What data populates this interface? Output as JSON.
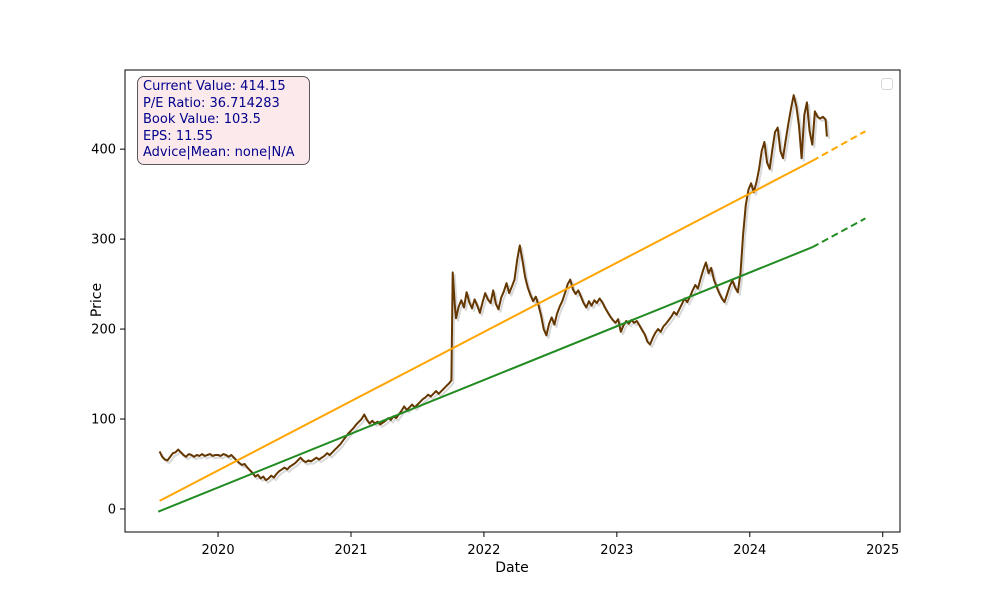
{
  "window": {
    "background": "#ffffff"
  },
  "annotation": {
    "lines": [
      "Current Value: 414.15",
      "P/E Ratio: 36.714283",
      "Book Value: 103.5",
      "EPS: 11.55",
      "Advice|Mean: none|N/A"
    ],
    "text_color": "#00008B",
    "background": "#fce9ec",
    "border_color": "#5a5a5a"
  },
  "legend": {
    "visible": true,
    "entries": []
  },
  "colors": {
    "price": "#653700",
    "price_shadow": "#cfcfcf",
    "trend_upper": "#FFA500",
    "trend_lower": "#228B22",
    "spine": "#000000"
  },
  "chart_data": {
    "type": "line",
    "title": "",
    "xlabel": "Date",
    "ylabel": "Price",
    "xlim": [
      2019.3,
      2025.13
    ],
    "ylim": [
      -25.6,
      488
    ],
    "x_ticks": [
      2020,
      2021,
      2022,
      2023,
      2024,
      2025
    ],
    "x_tick_labels": [
      "2020",
      "2021",
      "2022",
      "2023",
      "2024",
      "2025"
    ],
    "y_ticks": [
      0,
      100,
      200,
      300,
      400
    ],
    "y_tick_labels": [
      "0",
      "100",
      "200",
      "300",
      "400"
    ],
    "grid": false,
    "legend_position": "upper right",
    "series": [
      {
        "name": "price",
        "color": "#653700",
        "width": 2,
        "dashed": false,
        "shadow": true,
        "points": [
          [
            2019.56,
            64
          ],
          [
            2019.58,
            58
          ],
          [
            2019.6,
            55
          ],
          [
            2019.62,
            54
          ],
          [
            2019.64,
            58
          ],
          [
            2019.66,
            62
          ],
          [
            2019.68,
            63
          ],
          [
            2019.7,
            66
          ],
          [
            2019.72,
            63
          ],
          [
            2019.74,
            60
          ],
          [
            2019.76,
            58
          ],
          [
            2019.78,
            61
          ],
          [
            2019.8,
            60
          ],
          [
            2019.82,
            58
          ],
          [
            2019.84,
            60
          ],
          [
            2019.86,
            59
          ],
          [
            2019.88,
            61
          ],
          [
            2019.9,
            59
          ],
          [
            2019.92,
            60
          ],
          [
            2019.94,
            61
          ],
          [
            2019.96,
            59
          ],
          [
            2019.98,
            60
          ],
          [
            2020.0,
            60
          ],
          [
            2020.02,
            59
          ],
          [
            2020.04,
            61
          ],
          [
            2020.06,
            60
          ],
          [
            2020.08,
            58
          ],
          [
            2020.1,
            60
          ],
          [
            2020.12,
            57
          ],
          [
            2020.14,
            54
          ],
          [
            2020.16,
            51
          ],
          [
            2020.18,
            49
          ],
          [
            2020.2,
            50
          ],
          [
            2020.22,
            46
          ],
          [
            2020.24,
            43
          ],
          [
            2020.26,
            40
          ],
          [
            2020.28,
            36
          ],
          [
            2020.3,
            38
          ],
          [
            2020.32,
            34
          ],
          [
            2020.34,
            36
          ],
          [
            2020.36,
            32
          ],
          [
            2020.38,
            34
          ],
          [
            2020.4,
            37
          ],
          [
            2020.42,
            35
          ],
          [
            2020.44,
            39
          ],
          [
            2020.46,
            42
          ],
          [
            2020.48,
            44
          ],
          [
            2020.5,
            46
          ],
          [
            2020.52,
            44
          ],
          [
            2020.54,
            47
          ],
          [
            2020.56,
            49
          ],
          [
            2020.58,
            51
          ],
          [
            2020.6,
            54
          ],
          [
            2020.62,
            57
          ],
          [
            2020.64,
            54
          ],
          [
            2020.66,
            52
          ],
          [
            2020.68,
            54
          ],
          [
            2020.7,
            53
          ],
          [
            2020.72,
            55
          ],
          [
            2020.74,
            57
          ],
          [
            2020.76,
            55
          ],
          [
            2020.78,
            57
          ],
          [
            2020.8,
            59
          ],
          [
            2020.82,
            62
          ],
          [
            2020.84,
            60
          ],
          [
            2020.86,
            63
          ],
          [
            2020.88,
            66
          ],
          [
            2020.9,
            69
          ],
          [
            2020.92,
            72
          ],
          [
            2020.94,
            76
          ],
          [
            2020.96,
            80
          ],
          [
            2020.98,
            84
          ],
          [
            2021.0,
            87
          ],
          [
            2021.02,
            90
          ],
          [
            2021.04,
            94
          ],
          [
            2021.06,
            97
          ],
          [
            2021.08,
            100
          ],
          [
            2021.1,
            105
          ],
          [
            2021.12,
            99
          ],
          [
            2021.14,
            95
          ],
          [
            2021.16,
            98
          ],
          [
            2021.18,
            95
          ],
          [
            2021.2,
            97
          ],
          [
            2021.22,
            94
          ],
          [
            2021.24,
            96
          ],
          [
            2021.26,
            98
          ],
          [
            2021.28,
            101
          ],
          [
            2021.3,
            99
          ],
          [
            2021.32,
            103
          ],
          [
            2021.34,
            101
          ],
          [
            2021.36,
            105
          ],
          [
            2021.38,
            109
          ],
          [
            2021.4,
            114
          ],
          [
            2021.42,
            110
          ],
          [
            2021.44,
            113
          ],
          [
            2021.46,
            116
          ],
          [
            2021.48,
            113
          ],
          [
            2021.5,
            116
          ],
          [
            2021.52,
            119
          ],
          [
            2021.54,
            122
          ],
          [
            2021.56,
            124
          ],
          [
            2021.58,
            127
          ],
          [
            2021.6,
            125
          ],
          [
            2021.62,
            128
          ],
          [
            2021.64,
            131
          ],
          [
            2021.66,
            128
          ],
          [
            2021.68,
            131
          ],
          [
            2021.7,
            134
          ],
          [
            2021.72,
            137
          ],
          [
            2021.74,
            140
          ],
          [
            2021.755,
            143
          ],
          [
            2021.765,
            263
          ],
          [
            2021.78,
            228
          ],
          [
            2021.79,
            212
          ],
          [
            2021.81,
            225
          ],
          [
            2021.83,
            232
          ],
          [
            2021.85,
            224
          ],
          [
            2021.87,
            241
          ],
          [
            2021.89,
            230
          ],
          [
            2021.91,
            223
          ],
          [
            2021.93,
            233
          ],
          [
            2021.95,
            226
          ],
          [
            2021.97,
            218
          ],
          [
            2021.99,
            230
          ],
          [
            2022.01,
            240
          ],
          [
            2022.03,
            233
          ],
          [
            2022.05,
            229
          ],
          [
            2022.07,
            243
          ],
          [
            2022.09,
            228
          ],
          [
            2022.11,
            222
          ],
          [
            2022.13,
            235
          ],
          [
            2022.15,
            242
          ],
          [
            2022.17,
            251
          ],
          [
            2022.19,
            240
          ],
          [
            2022.21,
            247
          ],
          [
            2022.23,
            255
          ],
          [
            2022.25,
            277
          ],
          [
            2022.27,
            293
          ],
          [
            2022.29,
            276
          ],
          [
            2022.31,
            258
          ],
          [
            2022.33,
            246
          ],
          [
            2022.35,
            238
          ],
          [
            2022.37,
            231
          ],
          [
            2022.39,
            236
          ],
          [
            2022.41,
            227
          ],
          [
            2022.43,
            215
          ],
          [
            2022.45,
            200
          ],
          [
            2022.47,
            193
          ],
          [
            2022.49,
            206
          ],
          [
            2022.51,
            213
          ],
          [
            2022.53,
            205
          ],
          [
            2022.55,
            217
          ],
          [
            2022.57,
            225
          ],
          [
            2022.59,
            231
          ],
          [
            2022.61,
            240
          ],
          [
            2022.63,
            250
          ],
          [
            2022.65,
            255
          ],
          [
            2022.67,
            244
          ],
          [
            2022.69,
            239
          ],
          [
            2022.71,
            243
          ],
          [
            2022.73,
            236
          ],
          [
            2022.75,
            229
          ],
          [
            2022.77,
            224
          ],
          [
            2022.79,
            231
          ],
          [
            2022.81,
            226
          ],
          [
            2022.83,
            232
          ],
          [
            2022.85,
            229
          ],
          [
            2022.87,
            234
          ],
          [
            2022.89,
            230
          ],
          [
            2022.91,
            224
          ],
          [
            2022.93,
            219
          ],
          [
            2022.95,
            214
          ],
          [
            2022.97,
            210
          ],
          [
            2022.99,
            207
          ],
          [
            2023.01,
            211
          ],
          [
            2023.03,
            197
          ],
          [
            2023.05,
            204
          ],
          [
            2023.07,
            209
          ],
          [
            2023.09,
            206
          ],
          [
            2023.11,
            210
          ],
          [
            2023.13,
            207
          ],
          [
            2023.15,
            209
          ],
          [
            2023.17,
            204
          ],
          [
            2023.19,
            199
          ],
          [
            2023.21,
            194
          ],
          [
            2023.23,
            186
          ],
          [
            2023.25,
            183
          ],
          [
            2023.27,
            190
          ],
          [
            2023.29,
            196
          ],
          [
            2023.31,
            200
          ],
          [
            2023.33,
            197
          ],
          [
            2023.35,
            203
          ],
          [
            2023.37,
            206
          ],
          [
            2023.39,
            210
          ],
          [
            2023.41,
            214
          ],
          [
            2023.43,
            219
          ],
          [
            2023.45,
            216
          ],
          [
            2023.47,
            222
          ],
          [
            2023.49,
            228
          ],
          [
            2023.51,
            234
          ],
          [
            2023.53,
            230
          ],
          [
            2023.55,
            236
          ],
          [
            2023.57,
            243
          ],
          [
            2023.59,
            249
          ],
          [
            2023.61,
            245
          ],
          [
            2023.63,
            256
          ],
          [
            2023.65,
            266
          ],
          [
            2023.67,
            274
          ],
          [
            2023.69,
            262
          ],
          [
            2023.71,
            268
          ],
          [
            2023.73,
            255
          ],
          [
            2023.75,
            247
          ],
          [
            2023.77,
            240
          ],
          [
            2023.79,
            234
          ],
          [
            2023.81,
            230
          ],
          [
            2023.83,
            239
          ],
          [
            2023.85,
            248
          ],
          [
            2023.87,
            254
          ],
          [
            2023.89,
            246
          ],
          [
            2023.91,
            241
          ],
          [
            2023.93,
            262
          ],
          [
            2023.95,
            305
          ],
          [
            2023.97,
            338
          ],
          [
            2023.99,
            355
          ],
          [
            2024.01,
            362
          ],
          [
            2024.03,
            352
          ],
          [
            2024.05,
            363
          ],
          [
            2024.07,
            378
          ],
          [
            2024.09,
            398
          ],
          [
            2024.11,
            408
          ],
          [
            2024.13,
            385
          ],
          [
            2024.15,
            378
          ],
          [
            2024.17,
            400
          ],
          [
            2024.19,
            419
          ],
          [
            2024.21,
            424
          ],
          [
            2024.23,
            398
          ],
          [
            2024.25,
            390
          ],
          [
            2024.27,
            410
          ],
          [
            2024.29,
            428
          ],
          [
            2024.31,
            445
          ],
          [
            2024.33,
            460
          ],
          [
            2024.35,
            448
          ],
          [
            2024.37,
            426
          ],
          [
            2024.39,
            390
          ],
          [
            2024.41,
            438
          ],
          [
            2024.43,
            452
          ],
          [
            2024.45,
            420
          ],
          [
            2024.47,
            405
          ],
          [
            2024.49,
            442
          ],
          [
            2024.51,
            436
          ],
          [
            2024.53,
            434
          ],
          [
            2024.55,
            436
          ],
          [
            2024.57,
            433
          ],
          [
            2024.58,
            414
          ]
        ]
      },
      {
        "name": "trend_lower_solid",
        "color": "#228B22",
        "width": 2,
        "dashed": false,
        "shadow": false,
        "points": [
          [
            2019.55,
            -3
          ],
          [
            2024.47,
            291
          ]
        ]
      },
      {
        "name": "trend_lower_forecast",
        "color": "#228B22",
        "width": 2,
        "dashed": true,
        "shadow": false,
        "points": [
          [
            2024.47,
            291
          ],
          [
            2024.87,
            323
          ]
        ]
      },
      {
        "name": "trend_upper_solid",
        "color": "#FFA500",
        "width": 2,
        "dashed": false,
        "shadow": false,
        "points": [
          [
            2019.56,
            9
          ],
          [
            2024.47,
            387
          ]
        ]
      },
      {
        "name": "trend_upper_forecast",
        "color": "#FFA500",
        "width": 2,
        "dashed": true,
        "shadow": false,
        "points": [
          [
            2024.47,
            387
          ],
          [
            2024.87,
            420
          ]
        ]
      }
    ]
  }
}
